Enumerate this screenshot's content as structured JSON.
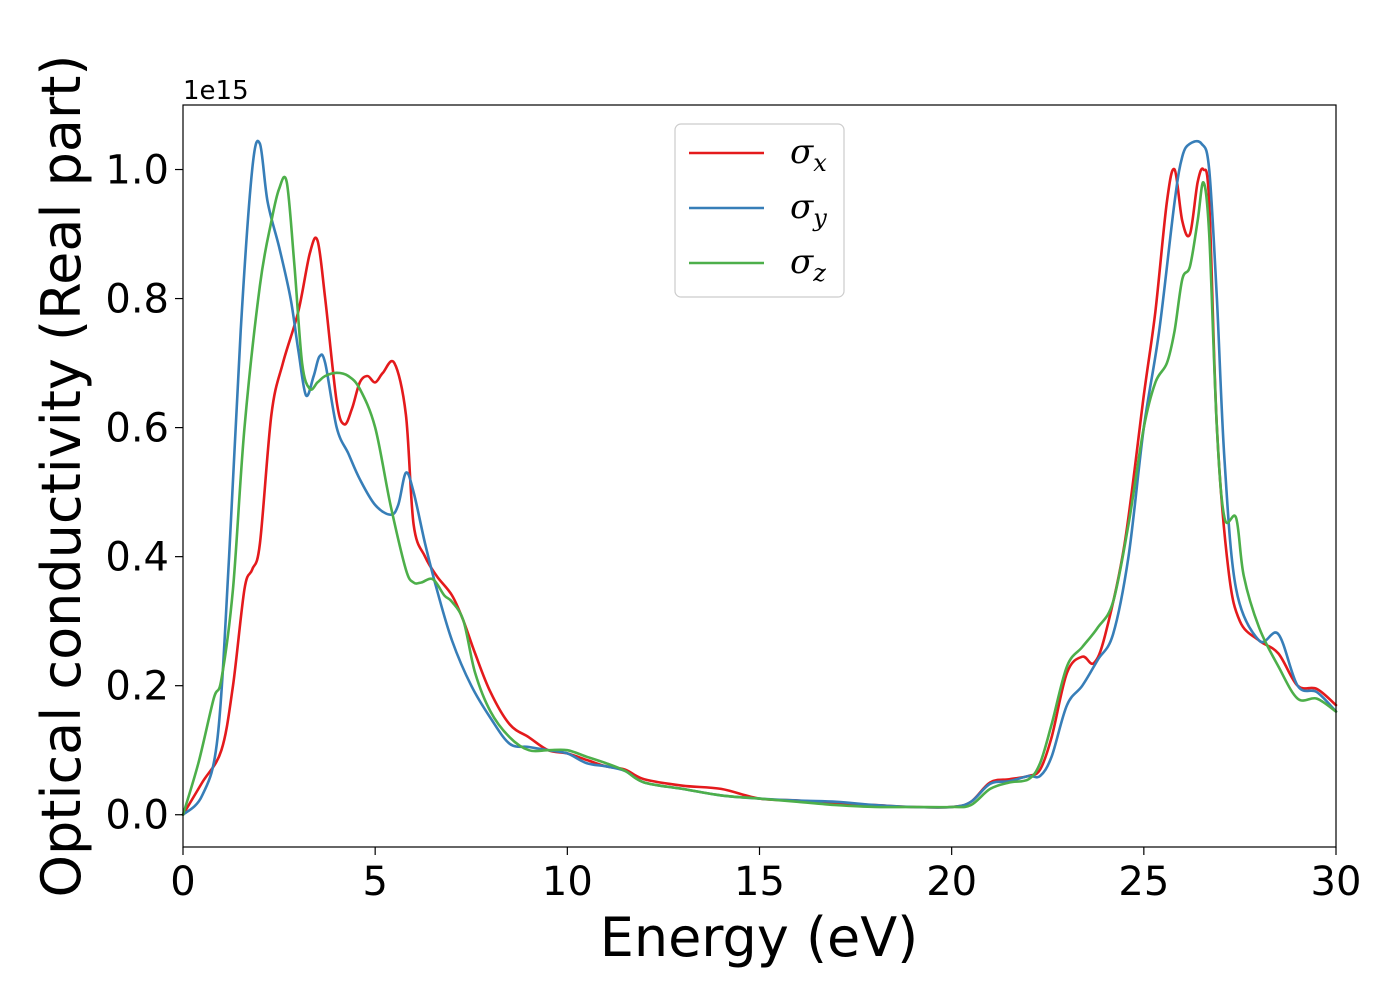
{
  "chart_data": {
    "type": "line",
    "xlabel": "Energy (eV)",
    "ylabel": "Optical conductivity (Real part)",
    "y_offset_label": "1e15",
    "xlim": [
      0,
      30
    ],
    "ylim": [
      -0.05,
      1.1
    ],
    "xticks": [
      0,
      5,
      10,
      15,
      20,
      25,
      30
    ],
    "xtick_labels": [
      "0",
      "5",
      "10",
      "15",
      "20",
      "25",
      "30"
    ],
    "yticks": [
      0.0,
      0.2,
      0.4,
      0.6,
      0.8,
      1.0
    ],
    "ytick_labels": [
      "0.0",
      "0.2",
      "0.4",
      "0.6",
      "0.8",
      "1.0"
    ],
    "grid": false,
    "legend_position": "top-center",
    "series": [
      {
        "name": "σx",
        "label_base": "σ",
        "label_sub": "x",
        "color": "#e41a1c",
        "x": [
          0,
          0.5,
          1.0,
          1.3,
          1.6,
          1.8,
          2.0,
          2.3,
          2.6,
          3.0,
          3.3,
          3.5,
          3.7,
          4.0,
          4.2,
          4.4,
          4.6,
          4.8,
          5.0,
          5.2,
          5.5,
          5.8,
          6.0,
          6.3,
          6.6,
          7.0,
          7.3,
          7.6,
          8.0,
          8.5,
          9.0,
          9.5,
          10.0,
          10.5,
          11.0,
          11.5,
          12.0,
          13.0,
          14.0,
          15.0,
          16.0,
          17.0,
          18.0,
          19.0,
          20.0,
          20.5,
          21.0,
          21.5,
          22.0,
          22.3,
          22.6,
          23.0,
          23.4,
          23.7,
          24.0,
          24.5,
          25.0,
          25.3,
          25.6,
          25.8,
          26.0,
          26.2,
          26.4,
          26.55,
          26.7,
          26.9,
          27.2,
          27.5,
          28.0,
          28.5,
          29.0,
          29.5,
          30.0
        ],
        "y": [
          0.0,
          0.05,
          0.1,
          0.2,
          0.35,
          0.38,
          0.42,
          0.62,
          0.7,
          0.78,
          0.87,
          0.89,
          0.8,
          0.64,
          0.605,
          0.63,
          0.67,
          0.68,
          0.67,
          0.685,
          0.7,
          0.62,
          0.45,
          0.4,
          0.37,
          0.34,
          0.3,
          0.25,
          0.19,
          0.14,
          0.12,
          0.1,
          0.095,
          0.085,
          0.075,
          0.07,
          0.055,
          0.045,
          0.04,
          0.025,
          0.022,
          0.018,
          0.015,
          0.012,
          0.012,
          0.02,
          0.05,
          0.055,
          0.06,
          0.07,
          0.12,
          0.22,
          0.245,
          0.235,
          0.28,
          0.42,
          0.65,
          0.78,
          0.95,
          1.0,
          0.92,
          0.9,
          0.98,
          1.0,
          0.95,
          0.6,
          0.38,
          0.3,
          0.27,
          0.25,
          0.2,
          0.195,
          0.17
        ]
      },
      {
        "name": "σy",
        "label_base": "σ",
        "label_sub": "y",
        "color": "#377eb8",
        "x": [
          0,
          0.5,
          0.9,
          1.2,
          1.5,
          1.8,
          2.0,
          2.2,
          2.5,
          2.8,
          3.0,
          3.2,
          3.4,
          3.55,
          3.7,
          4.0,
          4.3,
          4.6,
          5.0,
          5.4,
          5.6,
          5.8,
          6.0,
          6.3,
          6.6,
          7.0,
          7.5,
          8.0,
          8.5,
          9.0,
          9.5,
          10.0,
          10.5,
          11.0,
          11.5,
          12.0,
          13.0,
          14.0,
          15.0,
          16.0,
          17.0,
          18.0,
          19.0,
          20.0,
          20.5,
          21.0,
          21.5,
          22.0,
          22.3,
          22.6,
          23.0,
          23.4,
          23.8,
          24.2,
          24.6,
          25.0,
          25.4,
          25.8,
          26.0,
          26.2,
          26.5,
          26.7,
          26.9,
          27.1,
          27.4,
          28.0,
          28.5,
          29.0,
          29.5,
          30.0
        ],
        "y": [
          0.0,
          0.03,
          0.12,
          0.4,
          0.75,
          1.0,
          1.04,
          0.95,
          0.88,
          0.8,
          0.72,
          0.65,
          0.68,
          0.71,
          0.7,
          0.6,
          0.56,
          0.52,
          0.48,
          0.465,
          0.48,
          0.53,
          0.5,
          0.42,
          0.35,
          0.27,
          0.2,
          0.15,
          0.11,
          0.105,
          0.1,
          0.095,
          0.08,
          0.075,
          0.068,
          0.05,
          0.04,
          0.03,
          0.025,
          0.022,
          0.02,
          0.015,
          0.012,
          0.012,
          0.02,
          0.048,
          0.052,
          0.06,
          0.06,
          0.09,
          0.17,
          0.2,
          0.24,
          0.28,
          0.4,
          0.6,
          0.75,
          0.95,
          1.02,
          1.04,
          1.04,
          1.0,
          0.8,
          0.55,
          0.35,
          0.27,
          0.28,
          0.2,
          0.19,
          0.16
        ]
      },
      {
        "name": "σz",
        "label_base": "σ",
        "label_sub": "z",
        "color": "#4daf4a",
        "x": [
          0,
          0.4,
          0.8,
          1.0,
          1.3,
          1.6,
          2.0,
          2.3,
          2.5,
          2.7,
          2.9,
          3.1,
          3.3,
          3.5,
          3.7,
          4.0,
          4.3,
          4.6,
          5.0,
          5.4,
          5.8,
          6.0,
          6.2,
          6.5,
          6.8,
          7.0,
          7.3,
          7.6,
          8.0,
          8.5,
          9.0,
          9.5,
          10.0,
          10.5,
          11.0,
          11.5,
          12.0,
          13.0,
          14.0,
          15.0,
          16.0,
          17.0,
          18.0,
          19.0,
          20.0,
          20.5,
          21.0,
          21.5,
          22.0,
          22.3,
          22.6,
          23.0,
          23.4,
          23.8,
          24.2,
          24.6,
          25.0,
          25.3,
          25.6,
          25.8,
          26.0,
          26.2,
          26.4,
          26.55,
          26.7,
          26.9,
          27.1,
          27.4,
          27.6,
          28.0,
          28.5,
          29.0,
          29.5,
          30.0
        ],
        "y": [
          0.0,
          0.08,
          0.18,
          0.21,
          0.35,
          0.6,
          0.82,
          0.92,
          0.97,
          0.98,
          0.85,
          0.7,
          0.66,
          0.67,
          0.68,
          0.685,
          0.68,
          0.66,
          0.6,
          0.48,
          0.38,
          0.36,
          0.36,
          0.365,
          0.34,
          0.33,
          0.3,
          0.22,
          0.16,
          0.12,
          0.1,
          0.1,
          0.1,
          0.09,
          0.08,
          0.068,
          0.05,
          0.04,
          0.03,
          0.025,
          0.02,
          0.015,
          0.012,
          0.012,
          0.012,
          0.015,
          0.04,
          0.05,
          0.055,
          0.08,
          0.14,
          0.23,
          0.26,
          0.29,
          0.33,
          0.45,
          0.6,
          0.67,
          0.7,
          0.75,
          0.83,
          0.85,
          0.92,
          0.98,
          0.9,
          0.6,
          0.46,
          0.46,
          0.37,
          0.29,
          0.23,
          0.18,
          0.18,
          0.16
        ]
      }
    ]
  }
}
